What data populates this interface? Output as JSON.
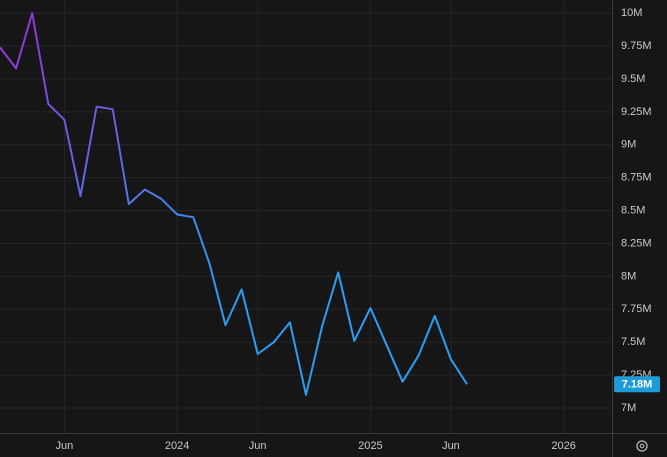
{
  "chart_data": {
    "type": "line",
    "x": [
      "2023-02",
      "2023-03",
      "2023-04",
      "2023-05",
      "2023-06",
      "2023-07",
      "2023-08",
      "2023-09",
      "2023-10",
      "2023-11",
      "2023-12",
      "2024-01",
      "2024-02",
      "2024-03",
      "2024-04",
      "2024-05",
      "2024-06",
      "2024-07",
      "2024-08",
      "2024-09",
      "2024-10",
      "2024-11",
      "2024-12",
      "2025-01",
      "2025-02",
      "2025-03",
      "2025-04",
      "2025-05",
      "2025-06",
      "2025-07"
    ],
    "series": [
      {
        "gradient": [
          "#9a2fd6",
          "#2a9df4"
        ],
        "values": [
          9.74,
          9.58,
          10.0,
          9.31,
          9.19,
          8.61,
          9.29,
          9.27,
          8.55,
          8.66,
          8.59,
          8.47,
          8.45,
          8.1,
          7.63,
          7.9,
          7.41,
          7.5,
          7.65,
          7.1,
          7.62,
          8.03,
          7.51,
          7.76,
          7.48,
          7.2,
          7.4,
          7.7,
          7.37,
          7.18
        ]
      }
    ],
    "xlim": [
      "2023-02",
      "2026-04"
    ],
    "xticks": [
      {
        "value": "2023-06",
        "label": "Jun"
      },
      {
        "value": "2024-01",
        "label": "2024"
      },
      {
        "value": "2024-06",
        "label": "Jun"
      },
      {
        "value": "2025-01",
        "label": "2025"
      },
      {
        "value": "2025-06",
        "label": "Jun"
      },
      {
        "value": "2026-01",
        "label": "2026"
      }
    ],
    "ylim": [
      6.81,
      10.1
    ],
    "yticks": [
      {
        "value": 7,
        "label": "7M"
      },
      {
        "value": 7.25,
        "label": "7.25M"
      },
      {
        "value": 7.5,
        "label": "7.5M"
      },
      {
        "value": 7.75,
        "label": "7.75M"
      },
      {
        "value": 8,
        "label": "8M"
      },
      {
        "value": 8.25,
        "label": "8.25M"
      },
      {
        "value": 8.5,
        "label": "8.5M"
      },
      {
        "value": 8.75,
        "label": "8.75M"
      },
      {
        "value": 9,
        "label": "9M"
      },
      {
        "value": 9.25,
        "label": "9.25M"
      },
      {
        "value": 9.5,
        "label": "9.5M"
      },
      {
        "value": 9.75,
        "label": "9.75M"
      },
      {
        "value": 10,
        "label": "10M"
      }
    ],
    "last_value": {
      "value": 7.18,
      "label": "7.18M",
      "color": "#1e9bd7"
    },
    "grid": true
  }
}
